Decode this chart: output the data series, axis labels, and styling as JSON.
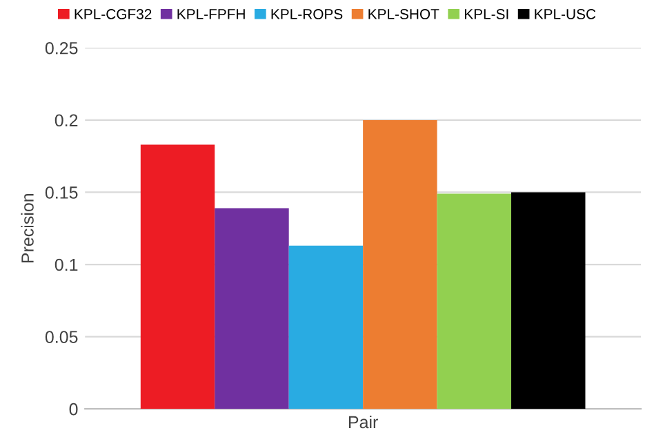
{
  "chart_data": {
    "type": "bar",
    "categories": [
      "Pair"
    ],
    "ylabel": "Precision",
    "series": [
      {
        "name": "KPL-CGF32",
        "color": "#ed1c24",
        "values": [
          0.183
        ]
      },
      {
        "name": "KPL-FPFH",
        "color": "#7030a0",
        "values": [
          0.139
        ]
      },
      {
        "name": "KPL-ROPS",
        "color": "#29abe2",
        "values": [
          0.113
        ]
      },
      {
        "name": "KPL-SHOT",
        "color": "#ed7d31",
        "values": [
          0.2
        ]
      },
      {
        "name": "KPL-SI",
        "color": "#92d050",
        "values": [
          0.149
        ]
      },
      {
        "name": "KPL-USC",
        "color": "#000000",
        "values": [
          0.15
        ]
      }
    ],
    "ylim": [
      0,
      0.25
    ],
    "yticks": [
      0,
      0.05,
      0.1,
      0.15,
      0.2,
      0.25
    ],
    "grid": "y",
    "legend": "top"
  }
}
